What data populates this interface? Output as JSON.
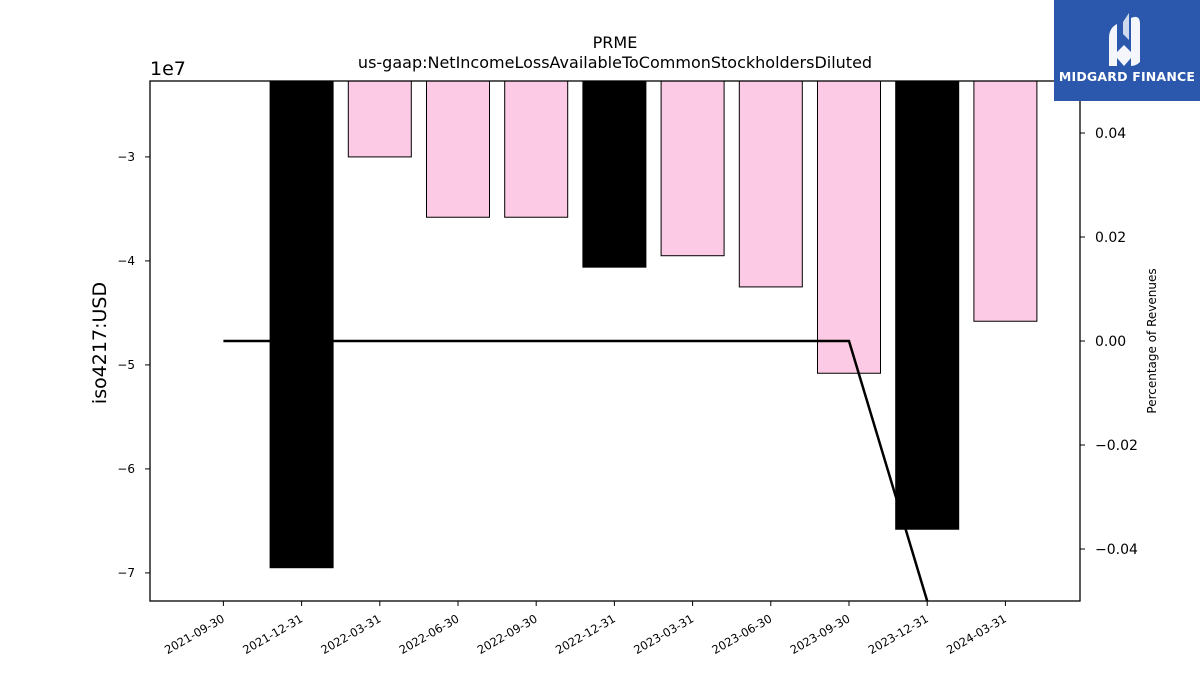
{
  "chart_data": {
    "type": "bar",
    "title": "PRME",
    "subtitle": "us-gaap:NetIncomeLossAvailableToCommonStockholdersDiluted",
    "ylabel": "iso4217:USD",
    "y_offset_label": "1e7",
    "y2label": "Percentage of Revenues",
    "categories": [
      "2021-09-30",
      "2021-12-31",
      "2022-03-31",
      "2022-06-30",
      "2022-09-30",
      "2022-12-31",
      "2023-03-31",
      "2023-06-30",
      "2023-09-30",
      "2023-12-31",
      "2024-03-31"
    ],
    "values": [
      null,
      -69500000,
      -30000000,
      -35800000,
      -35800000,
      -40600000,
      -39500000,
      -42500000,
      -50800000,
      -65800000,
      -45800000
    ],
    "bar_colors": [
      null,
      "#000000",
      "#fccae4",
      "#fccae4",
      "#fccae4",
      "#000000",
      "#fccae4",
      "#fccae4",
      "#fccae4",
      "#000000",
      "#fccae4"
    ],
    "ylim": [
      -72700000,
      -22700000
    ],
    "yticks": [
      -30000000,
      -40000000,
      -50000000,
      -60000000,
      -70000000
    ],
    "ytick_labels": [
      "−3",
      "−4",
      "−5",
      "−6",
      "−7"
    ],
    "line_series": {
      "name": "",
      "x": [
        "2021-09-30",
        "2021-12-31",
        "2022-03-31",
        "2022-06-30",
        "2022-09-30",
        "2022-12-31",
        "2023-03-31",
        "2023-06-30",
        "2023-09-30",
        "2023-12-31"
      ],
      "values": [
        0,
        0,
        0,
        0,
        0,
        0,
        0,
        0,
        0,
        -0.06
      ]
    },
    "y2lim": [
      -0.05,
      0.05
    ],
    "y2ticks": [
      0.04,
      0.02,
      0.0,
      -0.02,
      -0.04
    ],
    "y2tick_labels": [
      "0.04",
      "0.02",
      "0.00",
      "−0.02",
      "−0.04"
    ],
    "grid": false
  },
  "logo": {
    "text": "MIDGARD FINANCE"
  }
}
